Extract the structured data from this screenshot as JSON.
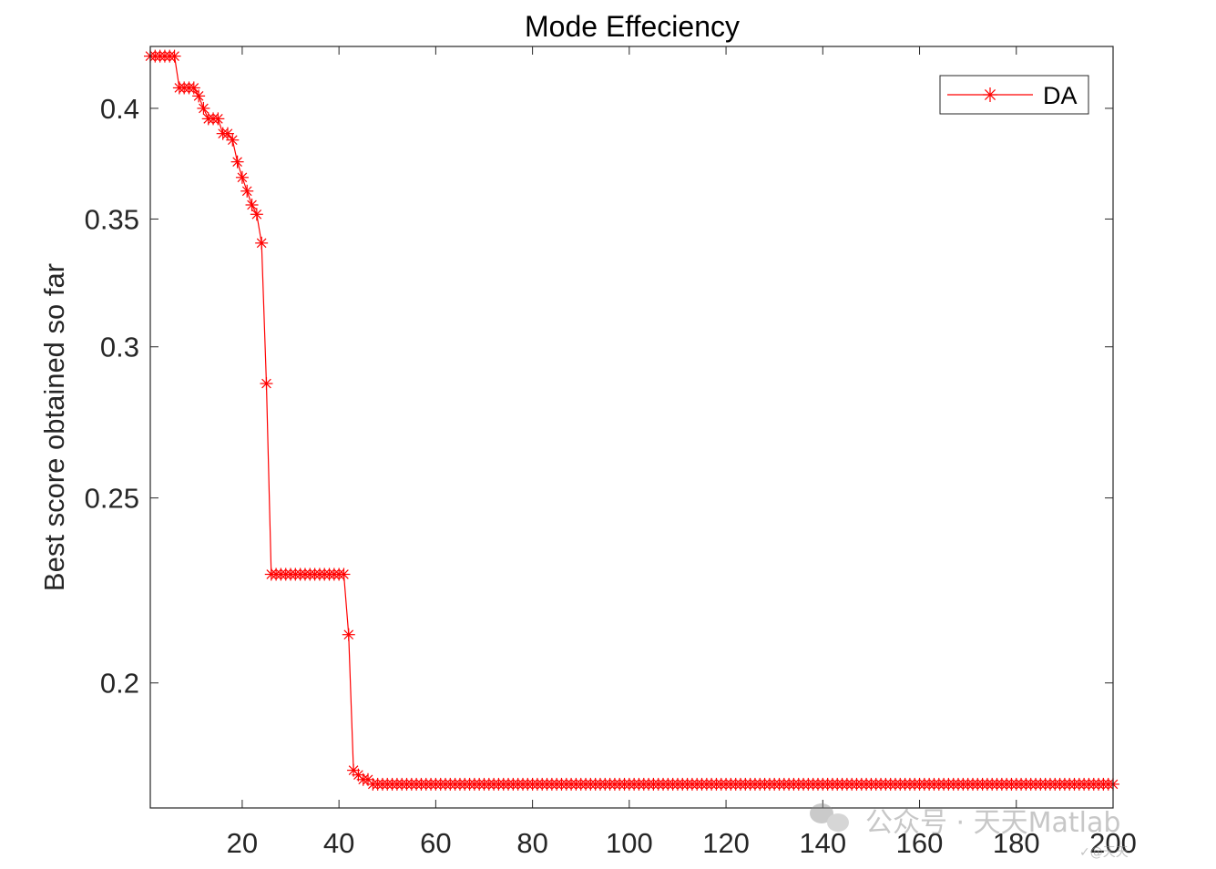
{
  "chart_data": {
    "type": "line",
    "title": "Mode Effeciency",
    "xlabel": "",
    "ylabel": "Best score obtained so far",
    "xlim": [
      1,
      200
    ],
    "ylim": [
      0.172,
      0.431
    ],
    "y_scale": "log",
    "x_ticks": [
      20,
      40,
      60,
      80,
      100,
      120,
      140,
      160,
      180,
      200
    ],
    "x_tick_labels": [
      "20",
      "40",
      "60",
      "80",
      "100",
      "120",
      "140",
      "160",
      "180",
      "200"
    ],
    "y_ticks": [
      0.2,
      0.25,
      0.3,
      0.35,
      0.4
    ],
    "y_tick_labels": [
      "0.2",
      "0.25",
      "0.3",
      "0.35",
      "0.4"
    ],
    "grid": false,
    "legend_position": "top-right",
    "series": [
      {
        "name": "DA",
        "color": "#ff0000",
        "marker": "asterisk",
        "x": [
          1,
          2,
          3,
          4,
          5,
          6,
          7,
          8,
          9,
          10,
          11,
          12,
          13,
          14,
          15,
          16,
          17,
          18,
          19,
          20,
          21,
          22,
          23,
          24,
          25,
          26,
          27,
          28,
          29,
          30,
          31,
          32,
          33,
          34,
          35,
          36,
          37,
          38,
          39,
          40,
          41,
          42,
          43,
          44,
          45,
          46,
          47,
          48,
          49,
          50
        ],
        "y": [
          0.426,
          0.426,
          0.426,
          0.426,
          0.426,
          0.426,
          0.41,
          0.41,
          0.41,
          0.41,
          0.406,
          0.4,
          0.395,
          0.395,
          0.395,
          0.388,
          0.388,
          0.385,
          0.375,
          0.368,
          0.362,
          0.356,
          0.352,
          0.34,
          0.287,
          0.228,
          0.228,
          0.228,
          0.228,
          0.228,
          0.228,
          0.228,
          0.228,
          0.228,
          0.228,
          0.228,
          0.228,
          0.228,
          0.228,
          0.228,
          0.228,
          0.212,
          0.18,
          0.179,
          0.178,
          0.178,
          0.177,
          0.177,
          0.177,
          0.177
        ],
        "plateau_value": 0.177,
        "plateau_until": 200
      }
    ]
  },
  "watermark": {
    "text": "公众号 · 天天Matlab",
    "icon": "wechat-icon",
    "small_text": "✓@天天"
  }
}
